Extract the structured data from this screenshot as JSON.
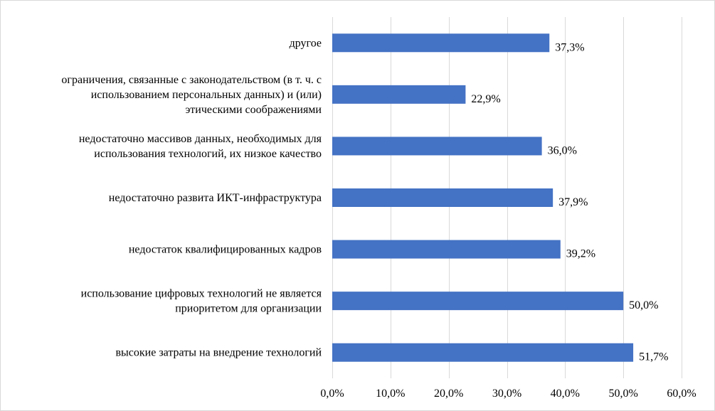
{
  "chart_data": {
    "type": "bar",
    "orientation": "horizontal",
    "categories": [
      [
        "другое"
      ],
      [
        "ограничения, связанные с законодательством (в т. ч. с",
        "использованием персональных данных) и (или)",
        "этическими соображениями"
      ],
      [
        "недостаточно массивов данных, необходимых для",
        "использования технологий, их низкое качество"
      ],
      [
        "недостаточно развита ИКТ-инфраструктура"
      ],
      [
        "недостаток квалифицированных кадров"
      ],
      [
        "использование цифровых технологий не является",
        "приоритетом для организации"
      ],
      [
        "высокие затраты на внедрение технологий"
      ]
    ],
    "values": [
      37.3,
      22.9,
      36.0,
      37.9,
      39.2,
      50.0,
      51.7
    ],
    "data_labels": [
      "37,3%",
      "22,9%",
      "36,0%",
      "37,9%",
      "39,2%",
      "50,0%",
      "51,7%"
    ],
    "xlim": [
      0,
      60
    ],
    "x_ticks": [
      0,
      10,
      20,
      30,
      40,
      50,
      60
    ],
    "x_tick_labels": [
      "0,0%",
      "10,0%",
      "20,0%",
      "30,0%",
      "40,0%",
      "50,0%",
      "60,0%"
    ],
    "title": "",
    "xlabel": "",
    "ylabel": "",
    "grid": "vertical",
    "legend": "none",
    "colors": {
      "bar": "#4472c4",
      "grid": "#d9d9d9",
      "text": "#000000"
    }
  }
}
